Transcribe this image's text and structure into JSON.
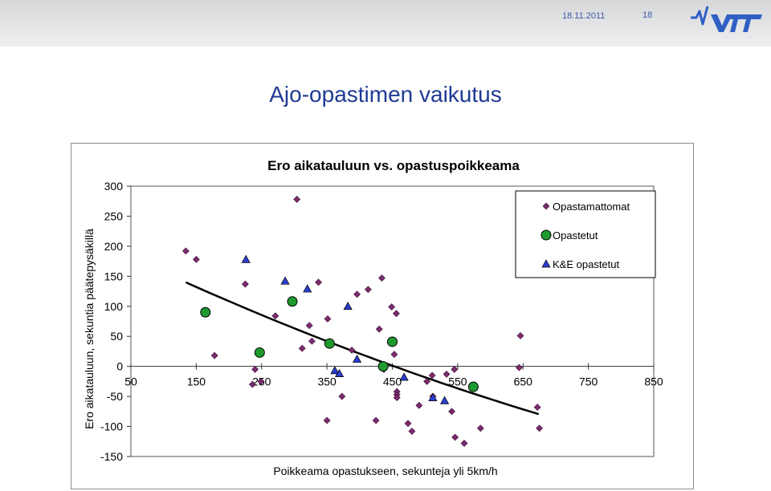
{
  "header": {
    "date": "18.11.2011",
    "page_number": "18",
    "logo_text": "VTT"
  },
  "slide": {
    "title": "Ajo-opastimen vaikutus"
  },
  "colors": {
    "opastamattomat": "#7b2c6e",
    "opastetut": "#1e9a2e",
    "ke_opastetut": "#2a3ecf",
    "trend": "#000000"
  },
  "chart_data": {
    "type": "scatter",
    "title": "Ero aikatauluun vs. opastuspoikkeama",
    "xlabel": "Poikkeama opastukseen, sekunteja yli 5km/h",
    "ylabel": "Ero aikatauluun, sekuntia päätepysäkillä",
    "xlim": [
      50,
      850
    ],
    "ylim": [
      -150,
      300
    ],
    "xticks": [
      50,
      150,
      250,
      350,
      450,
      550,
      650,
      750,
      850
    ],
    "yticks": [
      300,
      250,
      200,
      150,
      100,
      50,
      0,
      -50,
      -100,
      -150
    ],
    "legend_position": "top-right",
    "series": [
      {
        "name": "Opastamattomat",
        "marker": "diamond",
        "points": [
          [
            134,
            192
          ],
          [
            150,
            178
          ],
          [
            178,
            18
          ],
          [
            225,
            137
          ],
          [
            236,
            -30
          ],
          [
            240,
            -5
          ],
          [
            249,
            -25
          ],
          [
            271,
            84
          ],
          [
            304,
            278
          ],
          [
            312,
            30
          ],
          [
            323,
            68
          ],
          [
            327,
            42
          ],
          [
            337,
            140
          ],
          [
            350,
            -90
          ],
          [
            351,
            79
          ],
          [
            373,
            -50
          ],
          [
            388,
            27
          ],
          [
            396,
            120
          ],
          [
            413,
            128
          ],
          [
            425,
            -90
          ],
          [
            430,
            62
          ],
          [
            434,
            147
          ],
          [
            437,
            -5
          ],
          [
            449,
            99
          ],
          [
            453,
            20
          ],
          [
            456,
            88
          ],
          [
            457,
            -42
          ],
          [
            457,
            -47
          ],
          [
            474,
            -95
          ],
          [
            480,
            -108
          ],
          [
            491,
            -65
          ],
          [
            503,
            -25
          ],
          [
            511,
            -15
          ],
          [
            533,
            -13
          ],
          [
            541,
            -75
          ],
          [
            546,
            -118
          ],
          [
            560,
            -128
          ],
          [
            585,
            -103
          ],
          [
            644,
            -2
          ],
          [
            646,
            51
          ],
          [
            672,
            -68
          ],
          [
            675,
            -103
          ],
          [
            457,
            -52
          ],
          [
            512,
            -50
          ],
          [
            545,
            -5
          ]
        ]
      },
      {
        "name": "Opastetut",
        "marker": "circle",
        "points": [
          [
            164,
            90
          ],
          [
            247,
            23
          ],
          [
            297,
            108
          ],
          [
            354,
            38
          ],
          [
            436,
            0
          ],
          [
            450,
            41
          ],
          [
            574,
            -34
          ]
        ]
      },
      {
        "name": "K&E opastetut",
        "marker": "triangle",
        "points": [
          [
            226,
            178
          ],
          [
            286,
            142
          ],
          [
            320,
            129
          ],
          [
            362,
            -7
          ],
          [
            369,
            -12
          ],
          [
            382,
            100
          ],
          [
            396,
            12
          ],
          [
            468,
            -18
          ],
          [
            512,
            -52
          ],
          [
            530,
            -57
          ]
        ]
      }
    ],
    "trendline": {
      "type": "polynomial",
      "x_range": [
        134,
        674
      ]
    }
  }
}
